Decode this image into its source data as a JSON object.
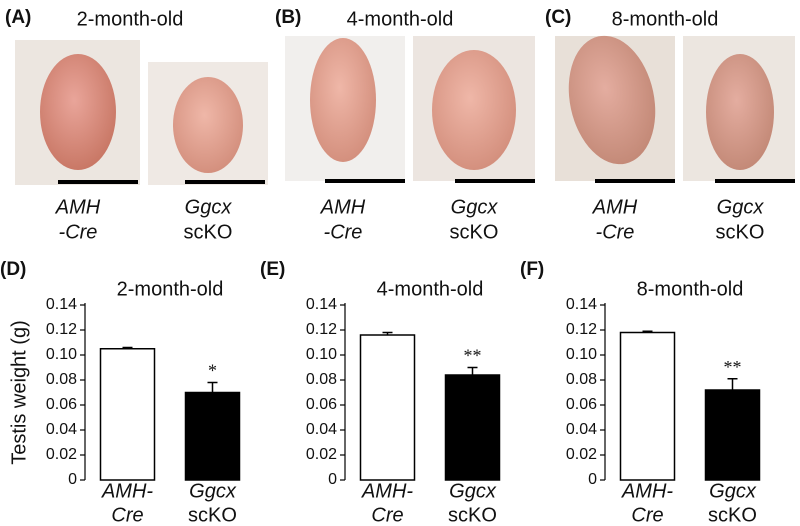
{
  "photo_panels": [
    {
      "label": "(A)",
      "title": "2-month-old",
      "captions": [
        [
          "AMH",
          "-Cre"
        ],
        [
          "Ggcx",
          "scKO"
        ]
      ]
    },
    {
      "label": "(B)",
      "title": "4-month-old",
      "captions": [
        [
          "AMH",
          "-Cre"
        ],
        [
          "Ggcx",
          "scKO"
        ]
      ]
    },
    {
      "label": "(C)",
      "title": "8-month-old",
      "captions": [
        [
          "AMH",
          "-Cre"
        ],
        [
          "Ggcx",
          "scKO"
        ]
      ]
    }
  ],
  "chart_data": [
    {
      "type": "bar",
      "label": "(D)",
      "title": "2-month-old",
      "ylabel": "Testis weight  (g)",
      "categories": [
        [
          "AMH-",
          "Cre"
        ],
        [
          "Ggcx",
          "scKO"
        ]
      ],
      "values": [
        0.105,
        0.07
      ],
      "errors": [
        0.001,
        0.008
      ],
      "value_annotations": [
        null,
        "*"
      ],
      "colors": [
        "#ffffff",
        "#000000"
      ],
      "ylim": [
        0,
        0.14
      ],
      "yticks": [
        0,
        0.02,
        0.04,
        0.06,
        0.08,
        {
          "value": 0.1,
          "label": "0.10"
        },
        0.12,
        0.14
      ]
    },
    {
      "type": "bar",
      "label": "(E)",
      "title": "4-month-old",
      "categories": [
        [
          "AMH-",
          "Cre"
        ],
        [
          "Ggcx",
          "scKO"
        ]
      ],
      "values": [
        0.116,
        0.084
      ],
      "errors": [
        0.002,
        0.006
      ],
      "value_annotations": [
        null,
        "**"
      ],
      "colors": [
        "#ffffff",
        "#000000"
      ],
      "ylim": [
        0,
        0.14
      ],
      "yticks": [
        0,
        0.02,
        0.04,
        0.06,
        0.08,
        {
          "value": 0.1,
          "label": "0.10"
        },
        0.12,
        0.14
      ]
    },
    {
      "type": "bar",
      "label": "(F)",
      "title": "8-month-old",
      "categories": [
        [
          "AMH-",
          "Cre"
        ],
        [
          "Ggcx",
          "scKO"
        ]
      ],
      "values": [
        0.118,
        0.072
      ],
      "errors": [
        0.001,
        0.009
      ],
      "value_annotations": [
        null,
        "**"
      ],
      "colors": [
        "#ffffff",
        "#000000"
      ],
      "ylim": [
        0,
        0.14
      ],
      "yticks": [
        0,
        0.02,
        0.04,
        0.06,
        0.08,
        {
          "value": 0.1,
          "label": "0.10"
        },
        0.12,
        0.14
      ]
    }
  ]
}
